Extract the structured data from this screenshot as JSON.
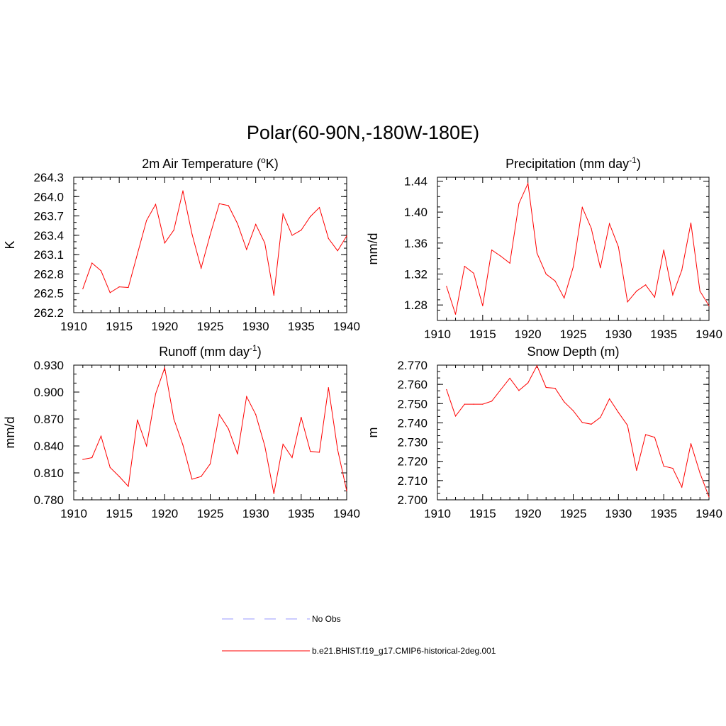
{
  "figure": {
    "title": "Polar(60-90N,-180W-180E)"
  },
  "legend": {
    "items": [
      {
        "label": "No Obs",
        "color": "#9999ff",
        "dash": true
      },
      {
        "label": "b.e21.BHIST.f19_g17.CMIP6-historical-2deg.001",
        "color": "#ff0000",
        "dash": false
      }
    ]
  },
  "chart_data": [
    {
      "type": "line",
      "title": "2m Air Temperature (",
      "title_sup": "o",
      "title_after": "K)",
      "ylabel": "K",
      "xlim": [
        1910,
        1940
      ],
      "ylim": [
        262.2,
        264.3
      ],
      "xticks": [
        "1910",
        "1915",
        "1920",
        "1925",
        "1930",
        "1935",
        "1940"
      ],
      "yticks": [
        "262.2",
        "262.5",
        "262.8",
        "263.1",
        "263.4",
        "263.7",
        "264.0",
        "264.3"
      ],
      "color": "#ff0000",
      "x": [
        1911,
        1912,
        1913,
        1914,
        1915,
        1916,
        1917,
        1918,
        1919,
        1920,
        1921,
        1922,
        1923,
        1924,
        1925,
        1926,
        1927,
        1928,
        1929,
        1930,
        1931,
        1932,
        1933,
        1934,
        1935,
        1936,
        1937,
        1938,
        1939,
        1940
      ],
      "values": [
        262.57,
        262.97,
        262.85,
        262.51,
        262.6,
        262.59,
        263.11,
        263.63,
        263.88,
        263.28,
        263.48,
        264.09,
        263.42,
        262.89,
        263.41,
        263.89,
        263.86,
        263.58,
        263.18,
        263.57,
        263.28,
        262.47,
        263.73,
        263.4,
        263.48,
        263.69,
        263.83,
        263.35,
        263.16,
        263.39
      ]
    },
    {
      "type": "line",
      "title": "Precipitation (mm day",
      "title_sup": "-1",
      "title_after": ")",
      "ylabel": "mm/d",
      "xlim": [
        1910,
        1940
      ],
      "ylim": [
        1.26,
        1.445
      ],
      "xticks": [
        "1910",
        "1915",
        "1920",
        "1925",
        "1930",
        "1935",
        "1940"
      ],
      "yticks": [
        "1.28",
        "1.32",
        "1.36",
        "1.40",
        "1.44"
      ],
      "color": "#ff0000",
      "x": [
        1911,
        1912,
        1913,
        1914,
        1915,
        1916,
        1917,
        1918,
        1919,
        1920,
        1921,
        1922,
        1923,
        1924,
        1925,
        1926,
        1927,
        1928,
        1929,
        1930,
        1931,
        1932,
        1933,
        1934,
        1935,
        1936,
        1937,
        1938,
        1939,
        1940
      ],
      "values": [
        1.304,
        1.268,
        1.33,
        1.321,
        1.279,
        1.351,
        1.343,
        1.334,
        1.411,
        1.437,
        1.347,
        1.32,
        1.311,
        1.289,
        1.329,
        1.406,
        1.379,
        1.328,
        1.385,
        1.355,
        1.284,
        1.298,
        1.306,
        1.29,
        1.351,
        1.293,
        1.325,
        1.386,
        1.298,
        1.279
      ]
    },
    {
      "type": "line",
      "title": "Runoff (mm day",
      "title_sup": "-1",
      "title_after": ")",
      "ylabel": "mm/d",
      "xlim": [
        1910,
        1940
      ],
      "ylim": [
        0.78,
        0.93
      ],
      "xticks": [
        "1910",
        "1915",
        "1920",
        "1925",
        "1930",
        "1935",
        "1940"
      ],
      "yticks": [
        "0.780",
        "0.810",
        "0.840",
        "0.870",
        "0.900",
        "0.930"
      ],
      "color": "#ff0000",
      "x": [
        1911,
        1912,
        1913,
        1914,
        1915,
        1916,
        1917,
        1918,
        1919,
        1920,
        1921,
        1922,
        1923,
        1924,
        1925,
        1926,
        1927,
        1928,
        1929,
        1930,
        1931,
        1932,
        1933,
        1934,
        1935,
        1936,
        1937,
        1938,
        1939,
        1940
      ],
      "values": [
        0.825,
        0.827,
        0.851,
        0.816,
        0.806,
        0.795,
        0.869,
        0.84,
        0.898,
        0.927,
        0.87,
        0.841,
        0.803,
        0.806,
        0.82,
        0.875,
        0.859,
        0.831,
        0.895,
        0.875,
        0.84,
        0.787,
        0.842,
        0.827,
        0.872,
        0.834,
        0.833,
        0.905,
        0.836,
        0.79
      ]
    },
    {
      "type": "line",
      "title": "Snow Depth (m)",
      "title_sup": "",
      "title_after": "",
      "ylabel": "m",
      "xlim": [
        1910,
        1940
      ],
      "ylim": [
        2.7,
        2.77
      ],
      "xticks": [
        "1910",
        "1915",
        "1920",
        "1925",
        "1930",
        "1935",
        "1940"
      ],
      "yticks": [
        "2.700",
        "2.710",
        "2.720",
        "2.730",
        "2.740",
        "2.750",
        "2.760",
        "2.770"
      ],
      "color": "#ff0000",
      "x": [
        1911,
        1912,
        1913,
        1914,
        1915,
        1916,
        1917,
        1918,
        1919,
        1920,
        1921,
        1922,
        1923,
        1924,
        1925,
        1926,
        1927,
        1928,
        1929,
        1930,
        1931,
        1932,
        1933,
        1934,
        1935,
        1936,
        1937,
        1938,
        1939,
        1940
      ],
      "values": [
        2.7573,
        2.7435,
        2.7497,
        2.7497,
        2.7497,
        2.7513,
        2.7573,
        2.7632,
        2.7568,
        2.7608,
        2.7697,
        2.7584,
        2.758,
        2.7509,
        2.7463,
        2.7402,
        2.7393,
        2.7428,
        2.7525,
        2.7454,
        2.7387,
        2.7153,
        2.7339,
        2.7325,
        2.7175,
        2.7164,
        2.7066,
        2.7292,
        2.714,
        2.7015
      ]
    }
  ]
}
